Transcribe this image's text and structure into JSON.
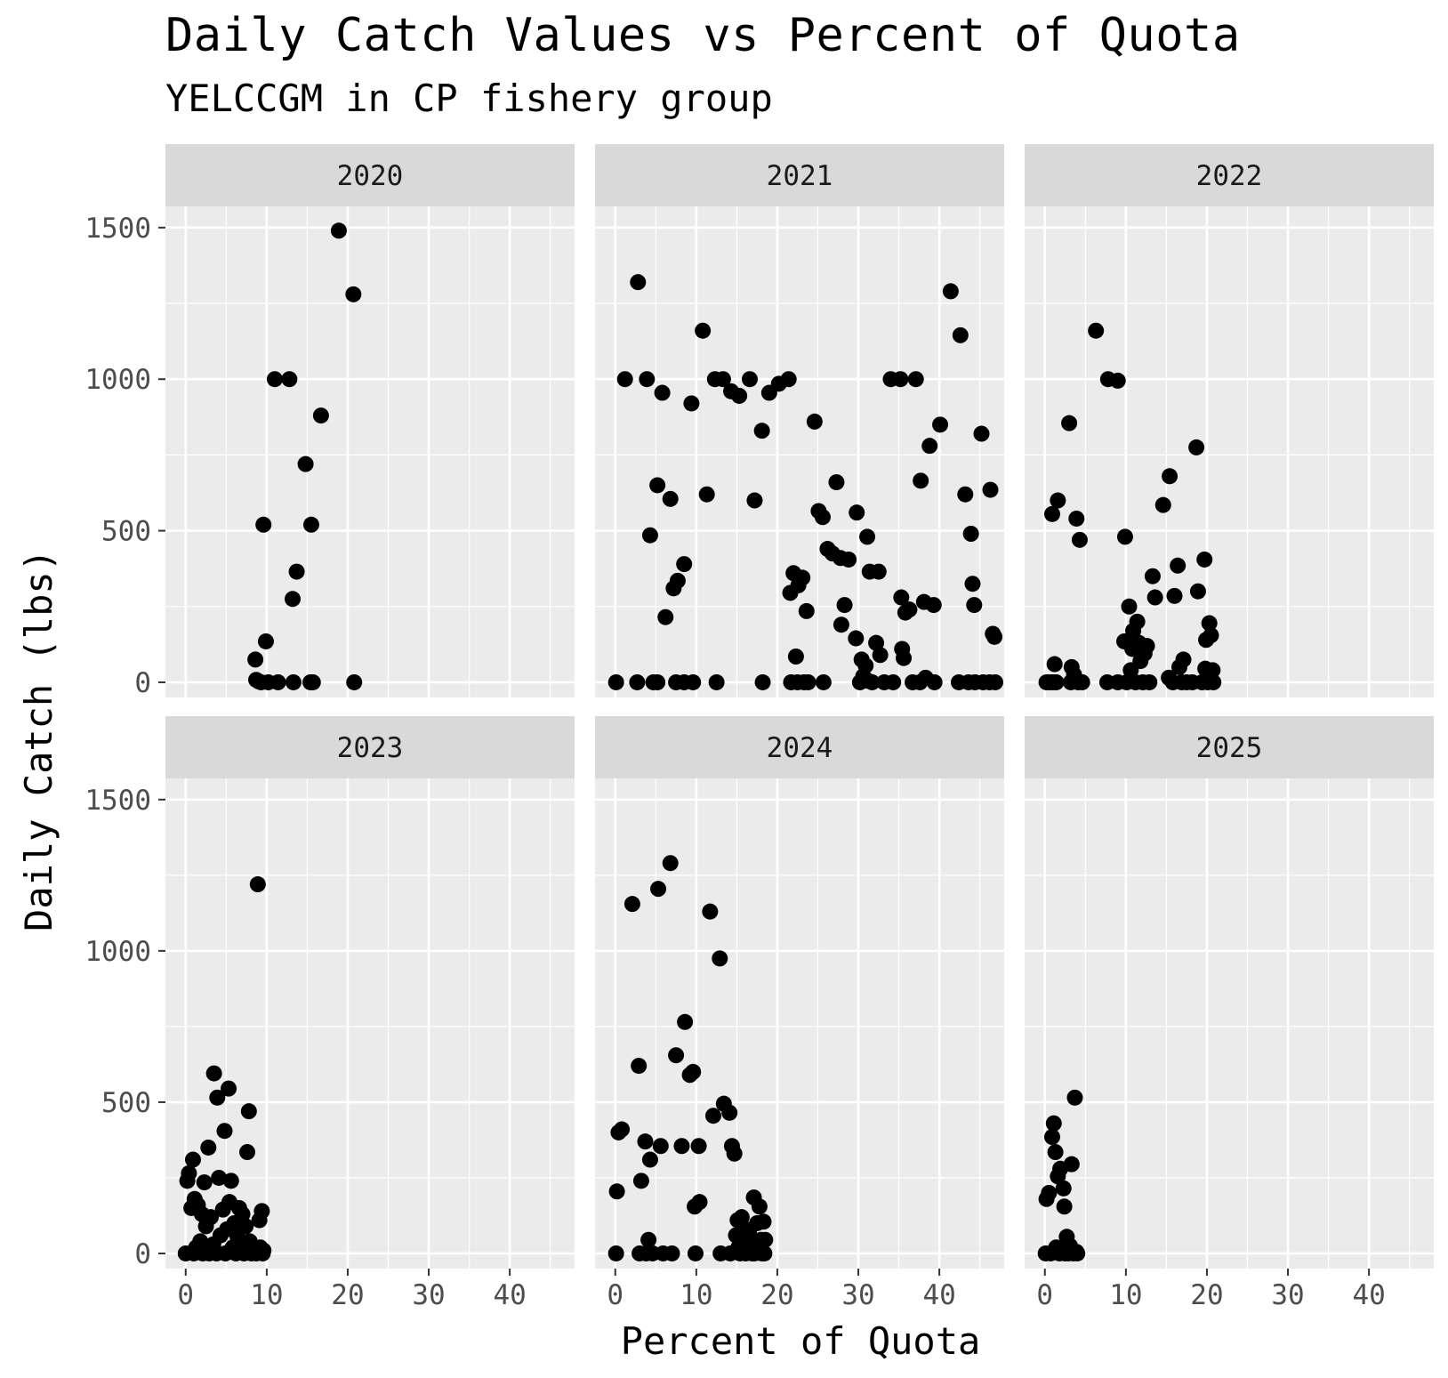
{
  "chart_data": {
    "type": "scatter",
    "title": "Daily Catch Values vs Percent of Quota",
    "subtitle": "YELCCGM in CP fishery group",
    "xlabel": "Percent of Quota",
    "ylabel": "Daily Catch (lbs)",
    "xlim": [
      -2.5,
      48
    ],
    "ylim": [
      -50,
      1570
    ],
    "x_ticks": [
      0,
      10,
      20,
      30,
      40
    ],
    "y_ticks": [
      0,
      500,
      1000,
      1500
    ],
    "grid": true,
    "facet_layout": "2 rows x 3 columns, shared axes",
    "panels": [
      {
        "label": "2020",
        "points": [
          [
            8.6,
            75
          ],
          [
            8.7,
            8
          ],
          [
            9,
            3
          ],
          [
            9.3,
            0
          ],
          [
            9.6,
            520
          ],
          [
            9.9,
            135
          ],
          [
            10.2,
            0
          ],
          [
            11,
            1000
          ],
          [
            11.4,
            0
          ],
          [
            12.8,
            1000
          ],
          [
            13.2,
            275
          ],
          [
            13.7,
            365
          ],
          [
            13.3,
            0
          ],
          [
            14.8,
            720
          ],
          [
            15.5,
            520
          ],
          [
            15.4,
            0
          ],
          [
            15.7,
            0
          ],
          [
            16.7,
            880
          ],
          [
            18.9,
            1490
          ],
          [
            20.7,
            1280
          ],
          [
            20.8,
            0
          ]
        ]
      },
      {
        "label": "2021",
        "points": [
          [
            0.1,
            0
          ],
          [
            1.2,
            1000
          ],
          [
            2.8,
            1320
          ],
          [
            2.7,
            0
          ],
          [
            3.9,
            1000
          ],
          [
            4.3,
            485
          ],
          [
            4.7,
            0
          ],
          [
            5.2,
            650
          ],
          [
            5.2,
            0
          ],
          [
            5.8,
            955
          ],
          [
            6.2,
            215
          ],
          [
            6.8,
            605
          ],
          [
            7.2,
            310
          ],
          [
            7.5,
            0
          ],
          [
            7.7,
            335
          ],
          [
            8.5,
            390
          ],
          [
            8.5,
            0
          ],
          [
            9.4,
            920
          ],
          [
            9.6,
            0
          ],
          [
            10.8,
            1160
          ],
          [
            11.3,
            620
          ],
          [
            12.3,
            1000
          ],
          [
            12.5,
            0
          ],
          [
            13.3,
            1000
          ],
          [
            14.3,
            960
          ],
          [
            15.3,
            945
          ],
          [
            16.6,
            1000
          ],
          [
            17.2,
            600
          ],
          [
            18.1,
            830
          ],
          [
            18.2,
            0
          ],
          [
            19,
            955
          ],
          [
            20.2,
            985
          ],
          [
            21.4,
            1000
          ],
          [
            21.6,
            295
          ],
          [
            21.7,
            0
          ],
          [
            22,
            360
          ],
          [
            22.3,
            85
          ],
          [
            22.5,
            0
          ],
          [
            22.6,
            320
          ],
          [
            23.1,
            345
          ],
          [
            23.3,
            0
          ],
          [
            23.6,
            235
          ],
          [
            23.8,
            0
          ],
          [
            24.6,
            860
          ],
          [
            25.1,
            565
          ],
          [
            25.6,
            545
          ],
          [
            25.7,
            0
          ],
          [
            26.2,
            440
          ],
          [
            26.8,
            425
          ],
          [
            27.3,
            660
          ],
          [
            27.8,
            410
          ],
          [
            27.9,
            190
          ],
          [
            28.3,
            255
          ],
          [
            28.8,
            405
          ],
          [
            29.8,
            560
          ],
          [
            29.7,
            145
          ],
          [
            30.2,
            0
          ],
          [
            30.4,
            75
          ],
          [
            30.6,
            20
          ],
          [
            30.9,
            55
          ],
          [
            31.1,
            480
          ],
          [
            31.2,
            5
          ],
          [
            31.4,
            365
          ],
          [
            31.7,
            0
          ],
          [
            32.2,
            130
          ],
          [
            32.5,
            365
          ],
          [
            32.7,
            90
          ],
          [
            33.2,
            0
          ],
          [
            34,
            1000
          ],
          [
            34.3,
            0
          ],
          [
            35.2,
            1000
          ],
          [
            35.3,
            280
          ],
          [
            35.4,
            110
          ],
          [
            35.6,
            80
          ],
          [
            35.8,
            230
          ],
          [
            36.3,
            240
          ],
          [
            36.7,
            0
          ],
          [
            37.1,
            1000
          ],
          [
            37.6,
            0
          ],
          [
            37.7,
            665
          ],
          [
            38.1,
            265
          ],
          [
            38.3,
            15
          ],
          [
            38.8,
            780
          ],
          [
            39.3,
            255
          ],
          [
            39.4,
            0
          ],
          [
            40.1,
            850
          ],
          [
            41.4,
            1290
          ],
          [
            42.6,
            1145
          ],
          [
            42.4,
            0
          ],
          [
            43.2,
            620
          ],
          [
            43.6,
            0
          ],
          [
            43.9,
            490
          ],
          [
            44.1,
            325
          ],
          [
            44.3,
            255
          ],
          [
            44.4,
            0
          ],
          [
            45.2,
            820
          ],
          [
            45.4,
            0
          ],
          [
            46.2,
            0
          ],
          [
            46.3,
            635
          ],
          [
            46.6,
            160
          ],
          [
            46.9,
            0
          ],
          [
            46.8,
            150
          ]
        ]
      },
      {
        "label": "2022",
        "points": [
          [
            0.2,
            0
          ],
          [
            0.6,
            0
          ],
          [
            1,
            0
          ],
          [
            0.9,
            555
          ],
          [
            1.2,
            60
          ],
          [
            1.6,
            600
          ],
          [
            1.4,
            0
          ],
          [
            3,
            855
          ],
          [
            3.3,
            50
          ],
          [
            3.2,
            0
          ],
          [
            3.6,
            25
          ],
          [
            3.9,
            540
          ],
          [
            4.1,
            0
          ],
          [
            4.3,
            470
          ],
          [
            4.6,
            0
          ],
          [
            6.3,
            1160
          ],
          [
            7.7,
            0
          ],
          [
            7.8,
            1000
          ],
          [
            9,
            995
          ],
          [
            9,
            0
          ],
          [
            9.9,
            480
          ],
          [
            9.8,
            135
          ],
          [
            10.1,
            0
          ],
          [
            10.4,
            250
          ],
          [
            10.6,
            40
          ],
          [
            10.8,
            110
          ],
          [
            10.9,
            170
          ],
          [
            11.2,
            0
          ],
          [
            11.4,
            200
          ],
          [
            11.6,
            130
          ],
          [
            11.8,
            70
          ],
          [
            12.1,
            0
          ],
          [
            12.3,
            95
          ],
          [
            12.6,
            120
          ],
          [
            12.9,
            0
          ],
          [
            13.3,
            350
          ],
          [
            13.6,
            280
          ],
          [
            14.6,
            585
          ],
          [
            15.4,
            680
          ],
          [
            15.3,
            15
          ],
          [
            15.8,
            0
          ],
          [
            16,
            285
          ],
          [
            16.4,
            385
          ],
          [
            16.6,
            50
          ],
          [
            16.9,
            0
          ],
          [
            17.1,
            75
          ],
          [
            17.5,
            0
          ],
          [
            18.2,
            0
          ],
          [
            18.7,
            775
          ],
          [
            18.9,
            300
          ],
          [
            19.4,
            0
          ],
          [
            19.7,
            405
          ],
          [
            19.8,
            45
          ],
          [
            19.9,
            140
          ],
          [
            20.1,
            0
          ],
          [
            20.3,
            195
          ],
          [
            20.5,
            155
          ],
          [
            20.7,
            40
          ],
          [
            20.8,
            0
          ]
        ]
      },
      {
        "label": "2023",
        "points": [
          [
            0,
            0
          ],
          [
            0.2,
            240
          ],
          [
            0.4,
            265
          ],
          [
            0.7,
            150
          ],
          [
            0.9,
            310
          ],
          [
            1.1,
            180
          ],
          [
            1,
            0
          ],
          [
            1.3,
            20
          ],
          [
            1.5,
            160
          ],
          [
            1.8,
            40
          ],
          [
            2,
            130
          ],
          [
            2.1,
            0
          ],
          [
            2.3,
            235
          ],
          [
            2.5,
            90
          ],
          [
            2.8,
            350
          ],
          [
            2.9,
            0
          ],
          [
            3.1,
            120
          ],
          [
            3.4,
            30
          ],
          [
            3.5,
            595
          ],
          [
            3.8,
            0
          ],
          [
            3.9,
            515
          ],
          [
            4.1,
            250
          ],
          [
            4.3,
            60
          ],
          [
            4.6,
            145
          ],
          [
            4.8,
            405
          ],
          [
            4.9,
            0
          ],
          [
            5.1,
            80
          ],
          [
            5.3,
            545
          ],
          [
            5.4,
            170
          ],
          [
            5.6,
            240
          ],
          [
            5.8,
            20
          ],
          [
            6,
            100
          ],
          [
            6.2,
            0
          ],
          [
            6.4,
            55
          ],
          [
            6.6,
            150
          ],
          [
            6.8,
            10
          ],
          [
            7,
            130
          ],
          [
            7.2,
            0
          ],
          [
            7.4,
            90
          ],
          [
            7.6,
            335
          ],
          [
            7.8,
            470
          ],
          [
            7.9,
            40
          ],
          [
            8.1,
            0
          ],
          [
            8.7,
            0
          ],
          [
            8.9,
            1220
          ],
          [
            9.1,
            110
          ],
          [
            9.2,
            20
          ],
          [
            9.4,
            140
          ],
          [
            9.5,
            0
          ],
          [
            9.6,
            10
          ]
        ]
      },
      {
        "label": "2024",
        "points": [
          [
            0.1,
            0
          ],
          [
            0.2,
            205
          ],
          [
            0.4,
            400
          ],
          [
            0.8,
            410
          ],
          [
            2.1,
            1155
          ],
          [
            2.9,
            620
          ],
          [
            3,
            0
          ],
          [
            3.2,
            240
          ],
          [
            3.7,
            370
          ],
          [
            3.8,
            0
          ],
          [
            4.1,
            45
          ],
          [
            4.3,
            310
          ],
          [
            4.6,
            0
          ],
          [
            5.3,
            1205
          ],
          [
            5.6,
            355
          ],
          [
            5.9,
            0
          ],
          [
            6.8,
            1290
          ],
          [
            7,
            0
          ],
          [
            7.5,
            655
          ],
          [
            8.2,
            355
          ],
          [
            8.6,
            765
          ],
          [
            9.2,
            590
          ],
          [
            9.6,
            600
          ],
          [
            9.9,
            0
          ],
          [
            9.8,
            155
          ],
          [
            10.3,
            355
          ],
          [
            10.4,
            170
          ],
          [
            11.7,
            1130
          ],
          [
            12.1,
            455
          ],
          [
            12.9,
            975
          ],
          [
            13,
            0
          ],
          [
            13.4,
            495
          ],
          [
            14.1,
            465
          ],
          [
            14.2,
            0
          ],
          [
            14.4,
            355
          ],
          [
            14.7,
            330
          ],
          [
            14.9,
            60
          ],
          [
            15.1,
            110
          ],
          [
            15.2,
            20
          ],
          [
            15.4,
            0
          ],
          [
            15.6,
            120
          ],
          [
            15.8,
            85
          ],
          [
            16.1,
            0
          ],
          [
            16.3,
            40
          ],
          [
            16.5,
            70
          ],
          [
            16.7,
            20
          ],
          [
            17.1,
            185
          ],
          [
            17.2,
            0
          ],
          [
            17.5,
            100
          ],
          [
            17.8,
            155
          ],
          [
            18,
            45
          ],
          [
            18.1,
            0
          ],
          [
            18.3,
            105
          ],
          [
            18.4,
            0
          ],
          [
            16.9,
            0
          ],
          [
            18.5,
            45
          ]
        ]
      },
      {
        "label": "2025",
        "points": [
          [
            0.1,
            0
          ],
          [
            0.2,
            180
          ],
          [
            0.5,
            200
          ],
          [
            0.7,
            0
          ],
          [
            0.9,
            385
          ],
          [
            1.1,
            430
          ],
          [
            1.3,
            335
          ],
          [
            1.4,
            20
          ],
          [
            1.6,
            255
          ],
          [
            1.8,
            0
          ],
          [
            1.9,
            280
          ],
          [
            2.2,
            10
          ],
          [
            2.3,
            215
          ],
          [
            2.4,
            155
          ],
          [
            2.5,
            0
          ],
          [
            2.7,
            55
          ],
          [
            2.9,
            0
          ],
          [
            3.1,
            25
          ],
          [
            3.3,
            295
          ],
          [
            3.5,
            0
          ],
          [
            3.7,
            515
          ],
          [
            3.9,
            5
          ],
          [
            4,
            0
          ]
        ]
      }
    ]
  }
}
